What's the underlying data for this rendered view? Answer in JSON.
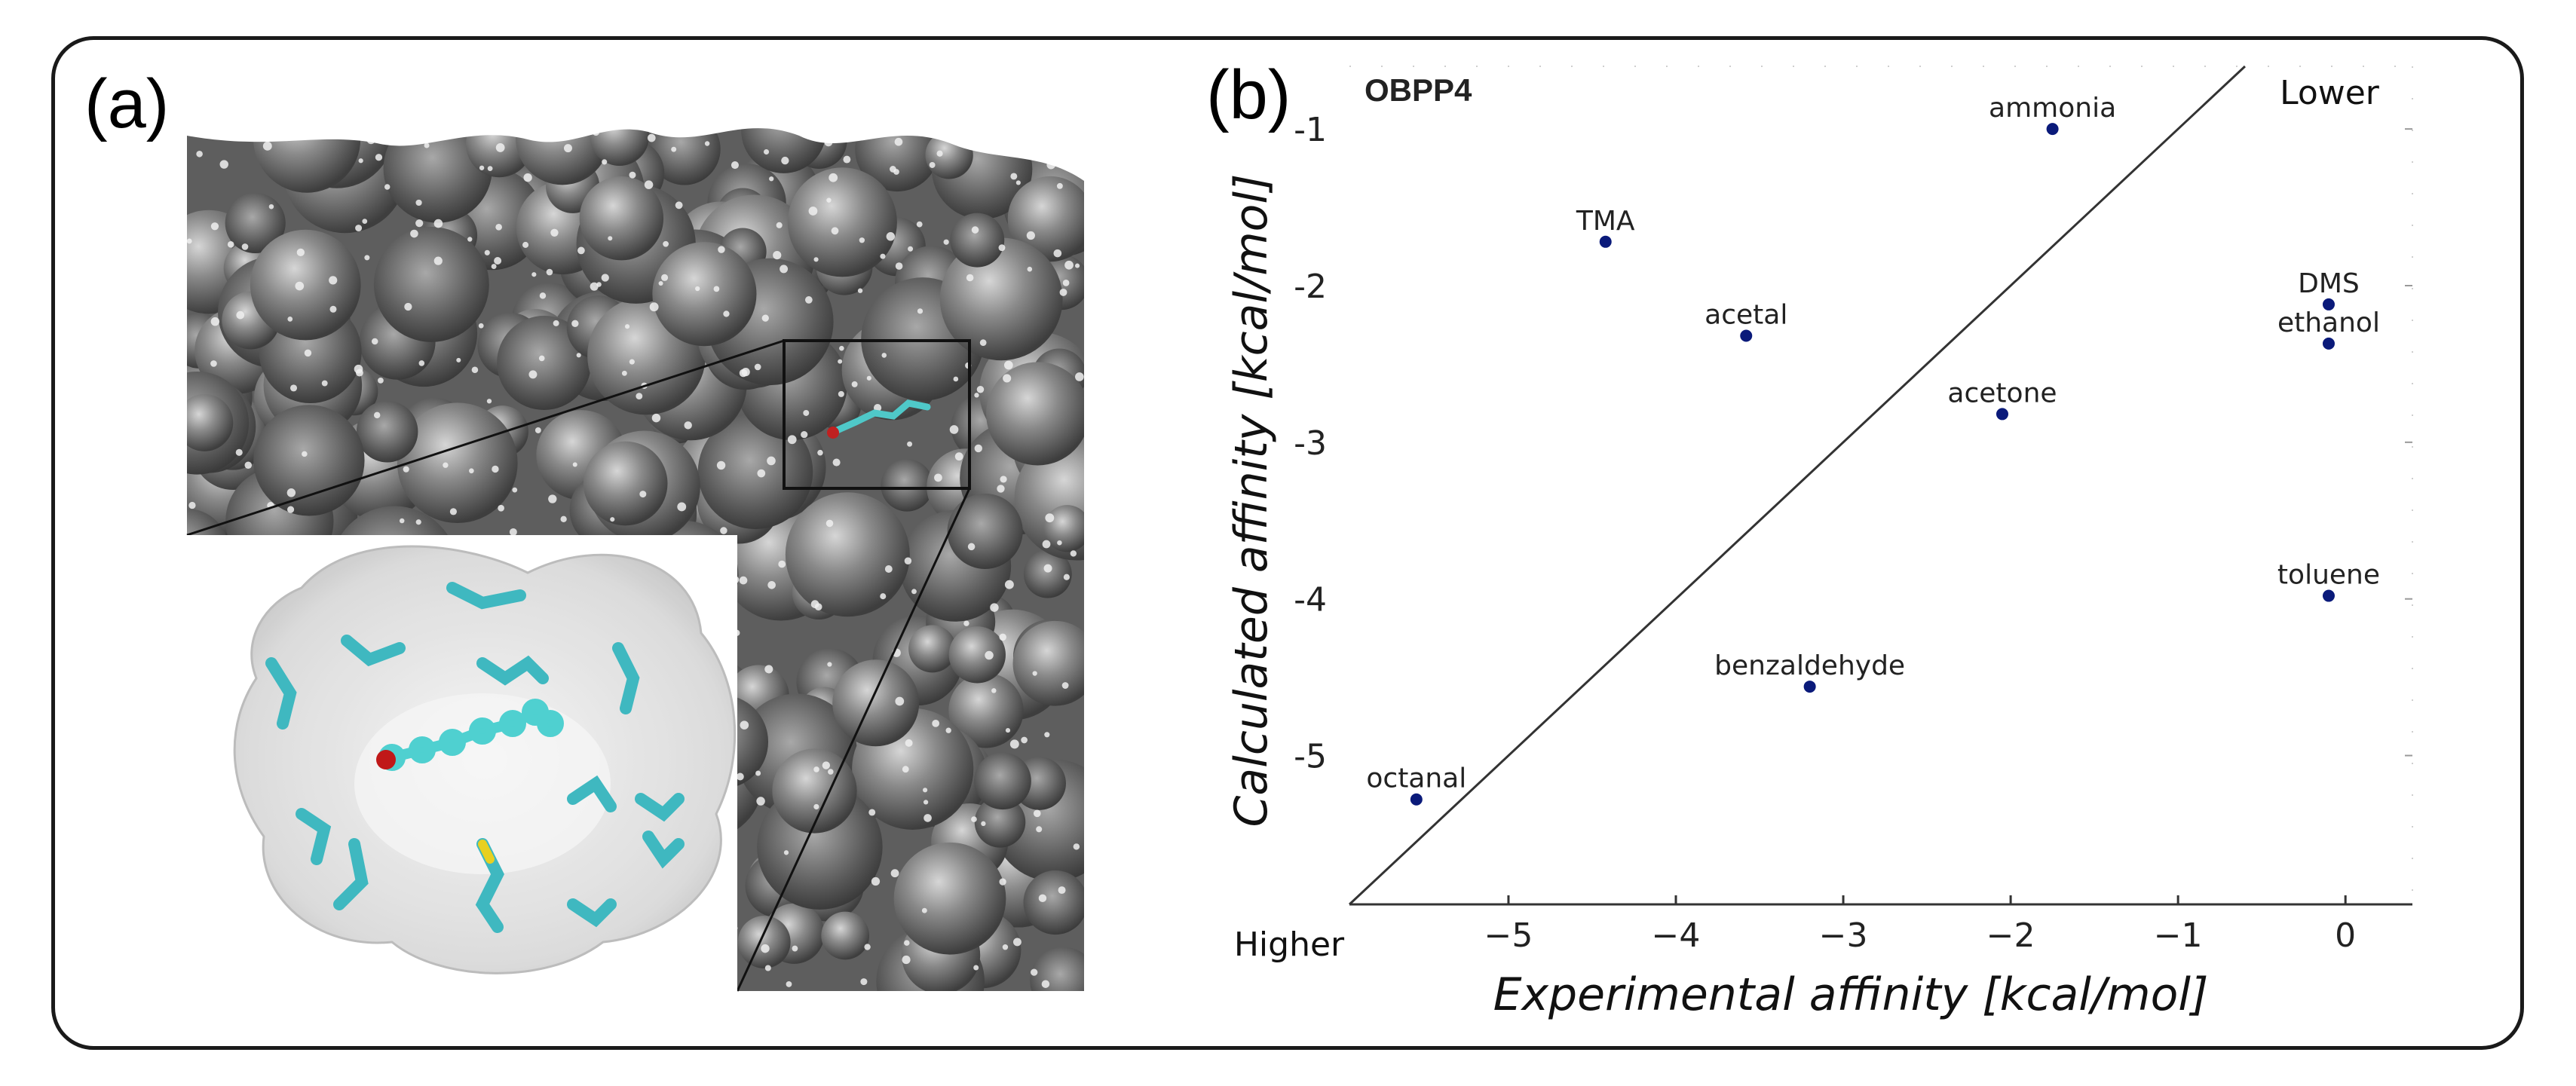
{
  "panel_a": {
    "label": "(a)",
    "image_description_icon": "protein-surface-image"
  },
  "panel_b": {
    "label": "(b)"
  },
  "chart_data": {
    "type": "scatter",
    "title": "OBPP4",
    "xlabel": "Experimental affinity [kcal/mol]",
    "ylabel": "Calculated affinity [kcal/mol]",
    "xlim": [
      -5.95,
      0.4
    ],
    "ylim": [
      -5.95,
      -0.6
    ],
    "xticks": [
      -5,
      -4,
      -3,
      -2,
      -1,
      0
    ],
    "xtick_labels": [
      "−5",
      "−4",
      "−3",
      "−2",
      "−1",
      "0"
    ],
    "yticks": [
      -1,
      -2,
      -3,
      -4,
      -5
    ],
    "ytick_labels": [
      "-1",
      "-2",
      "-3",
      "-4",
      "-5"
    ],
    "diagonal": {
      "from": [
        -5.95,
        -5.95
      ],
      "to": [
        -0.6,
        -0.6
      ]
    },
    "corner_labels": {
      "top_right": "Lower",
      "bottom_left": "Higher"
    },
    "marker_color": "#0a1a7a",
    "points": [
      {
        "name": "ammonia",
        "x": -1.75,
        "y": -1.0,
        "label_pos": "above"
      },
      {
        "name": "TMA",
        "x": -4.42,
        "y": -1.72,
        "label_pos": "above"
      },
      {
        "name": "acetal",
        "x": -3.58,
        "y": -2.32,
        "label_pos": "above"
      },
      {
        "name": "DMS",
        "x": -0.1,
        "y": -2.12,
        "label_pos": "above"
      },
      {
        "name": "ethanol",
        "x": -0.1,
        "y": -2.37,
        "label_pos": "above"
      },
      {
        "name": "acetone",
        "x": -2.05,
        "y": -2.82,
        "label_pos": "above"
      },
      {
        "name": "toluene",
        "x": -0.1,
        "y": -3.98,
        "label_pos": "above"
      },
      {
        "name": "benzaldehyde",
        "x": -3.2,
        "y": -4.56,
        "label_pos": "above"
      },
      {
        "name": "octanal",
        "x": -5.55,
        "y": -5.28,
        "label_pos": "above"
      }
    ]
  }
}
